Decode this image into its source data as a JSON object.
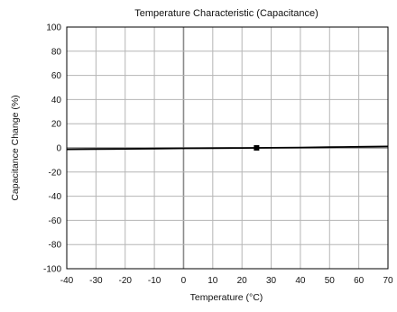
{
  "chart_data": {
    "type": "line",
    "title": "Temperature Characteristic (Capacitance)",
    "xlabel": "Temperature (°C)",
    "ylabel": "Capacitance Change (%)",
    "xlim": [
      -40,
      70
    ],
    "ylim": [
      -100,
      100
    ],
    "x_ticks": [
      -40,
      -30,
      -20,
      -10,
      0,
      10,
      20,
      30,
      40,
      50,
      60,
      70
    ],
    "y_ticks": [
      100,
      80,
      60,
      40,
      20,
      0,
      -20,
      -40,
      -60,
      -80,
      -100
    ],
    "grid": true,
    "legend": "none",
    "series": [
      {
        "x": [
          -40,
          -30,
          -20,
          -10,
          0,
          10,
          20,
          25,
          30,
          40,
          50,
          60,
          70
        ],
        "y": [
          -1.2,
          -1.0,
          -0.8,
          -0.6,
          -0.4,
          -0.2,
          -0.1,
          0,
          0.1,
          0.3,
          0.6,
          0.9,
          1.2
        ],
        "color": "#000000"
      }
    ],
    "reference_point": {
      "x": 25,
      "y": 0
    }
  }
}
